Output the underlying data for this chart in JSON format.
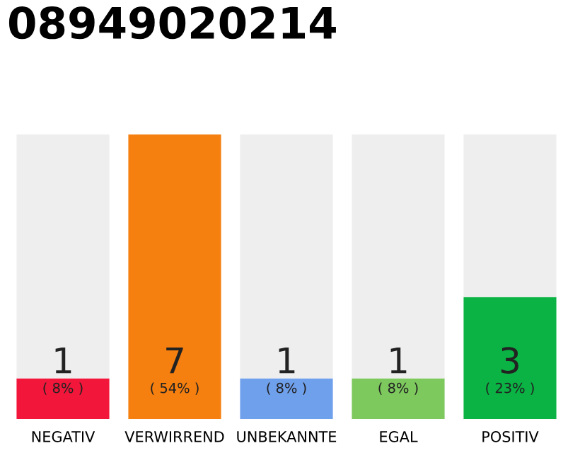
{
  "chart_data": {
    "type": "bar",
    "title": "08949020214",
    "categories": [
      "NEGATIV",
      "VERWIRREND",
      "UNBEKANNTE",
      "EGAL",
      "POSITIV"
    ],
    "stacked": true,
    "series": [
      {
        "colors": [
          "#f2163a",
          "#f57f0f",
          "#6fa0ec",
          "#7dc95e",
          "#0ab344"
        ],
        "values": [
          1,
          7,
          1,
          1,
          3
        ],
        "value_labels": [
          "1\n( 8% )",
          "7\n( 54% )",
          "1\n( 8% )",
          "1\n( 8% )",
          "3\n( 23% )"
        ]
      },
      {
        "color": "#eeeeee",
        "values": [
          6,
          0,
          6,
          6,
          4
        ]
      }
    ],
    "ylim": [
      0,
      7
    ],
    "tick_labels": "x",
    "grid": false,
    "legend": false
  }
}
